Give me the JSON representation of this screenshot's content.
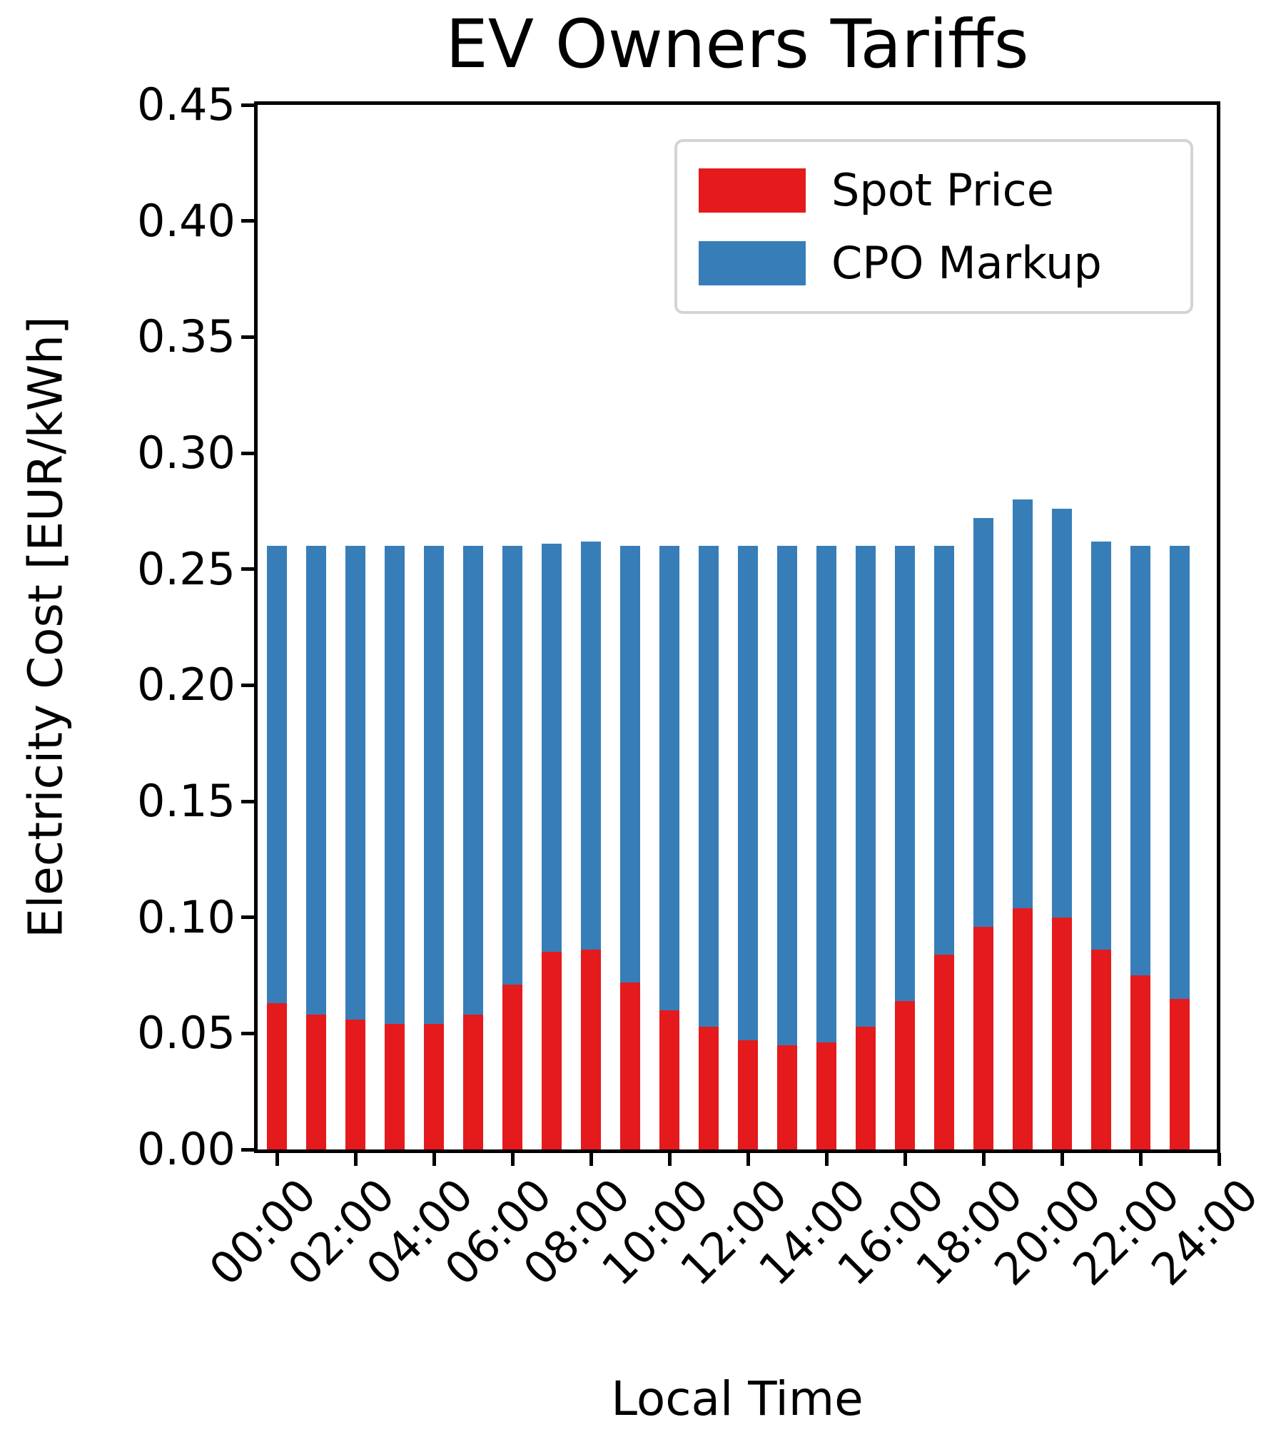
{
  "chart_data": {
    "type": "bar",
    "stacked": true,
    "title": "EV Owners Tariffs",
    "xlabel": "Local Time",
    "ylabel": "Electricity Cost [EUR/kWh]",
    "ylim": [
      0.0,
      0.45
    ],
    "grid": false,
    "legend_position": "upper right",
    "categories": [
      "00:00",
      "01:00",
      "02:00",
      "03:00",
      "04:00",
      "05:00",
      "06:00",
      "07:00",
      "08:00",
      "09:00",
      "10:00",
      "11:00",
      "12:00",
      "13:00",
      "14:00",
      "15:00",
      "16:00",
      "17:00",
      "18:00",
      "19:00",
      "20:00",
      "21:00",
      "22:00",
      "23:00"
    ],
    "series": [
      {
        "name": "Spot Price",
        "color": "#e41a1c",
        "values": [
          0.063,
          0.058,
          0.056,
          0.054,
          0.054,
          0.058,
          0.071,
          0.085,
          0.086,
          0.072,
          0.06,
          0.053,
          0.047,
          0.045,
          0.046,
          0.053,
          0.064,
          0.084,
          0.096,
          0.104,
          0.1,
          0.086,
          0.075,
          0.065
        ]
      },
      {
        "name": "CPO Markup",
        "color": "#377eb8",
        "values": [
          0.197,
          0.202,
          0.204,
          0.206,
          0.206,
          0.202,
          0.189,
          0.176,
          0.176,
          0.188,
          0.2,
          0.207,
          0.213,
          0.215,
          0.214,
          0.207,
          0.196,
          0.176,
          0.176,
          0.176,
          0.176,
          0.176,
          0.185,
          0.195
        ]
      }
    ],
    "stack_totals": [
      0.26,
      0.26,
      0.26,
      0.26,
      0.26,
      0.26,
      0.26,
      0.261,
      0.262,
      0.26,
      0.26,
      0.26,
      0.26,
      0.26,
      0.26,
      0.26,
      0.26,
      0.26,
      0.272,
      0.28,
      0.276,
      0.262,
      0.26,
      0.26
    ],
    "y_ticks": {
      "values": [
        0.0,
        0.05,
        0.1,
        0.15,
        0.2,
        0.25,
        0.3,
        0.35,
        0.4,
        0.45
      ],
      "labels": [
        "0.00",
        "0.05",
        "0.10",
        "0.15",
        "0.20",
        "0.25",
        "0.30",
        "0.35",
        "0.40",
        "0.45"
      ]
    },
    "x_ticks": {
      "hours": [
        0,
        2,
        4,
        6,
        8,
        10,
        12,
        14,
        16,
        18,
        20,
        22,
        24
      ],
      "labels": [
        "00:00",
        "02:00",
        "04:00",
        "06:00",
        "08:00",
        "10:00",
        "12:00",
        "14:00",
        "16:00",
        "18:00",
        "20:00",
        "22:00",
        "24:00"
      ]
    }
  }
}
